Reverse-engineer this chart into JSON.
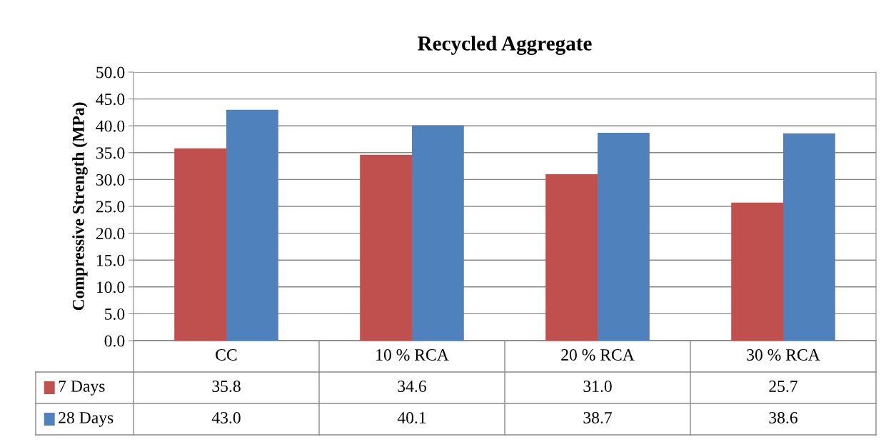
{
  "chart_data": {
    "type": "bar",
    "title": "Recycled Aggregate",
    "ylabel": "Compressive Strength (MPa)",
    "categories": [
      "CC",
      "10 % RCA",
      "20 % RCA",
      "30 % RCA"
    ],
    "series": [
      {
        "name": "7 Days",
        "color": "#c0504d",
        "values": [
          35.8,
          34.6,
          31.0,
          25.7
        ],
        "value_labels": [
          "35.8",
          "34.6",
          "31.0",
          "25.7"
        ]
      },
      {
        "name": "28 Days",
        "color": "#4f81bd",
        "values": [
          43.0,
          40.1,
          38.7,
          38.6
        ],
        "value_labels": [
          "43.0",
          "40.1",
          "38.7",
          "38.6"
        ]
      }
    ],
    "ylim": [
      0,
      50
    ],
    "yticks": [
      {
        "value": 0,
        "label": "0.0"
      },
      {
        "value": 5,
        "label": "5.0"
      },
      {
        "value": 10,
        "label": "10.0"
      },
      {
        "value": 15,
        "label": "15.0"
      },
      {
        "value": 20,
        "label": "20.0"
      },
      {
        "value": 25,
        "label": "25.0"
      },
      {
        "value": 30,
        "label": "30.0"
      },
      {
        "value": 35,
        "label": "35.0"
      },
      {
        "value": 40,
        "label": "40.0"
      },
      {
        "value": 45,
        "label": "45.0"
      },
      {
        "value": 50,
        "label": "50.0"
      }
    ],
    "grid": "y",
    "legend": "bottom left"
  }
}
